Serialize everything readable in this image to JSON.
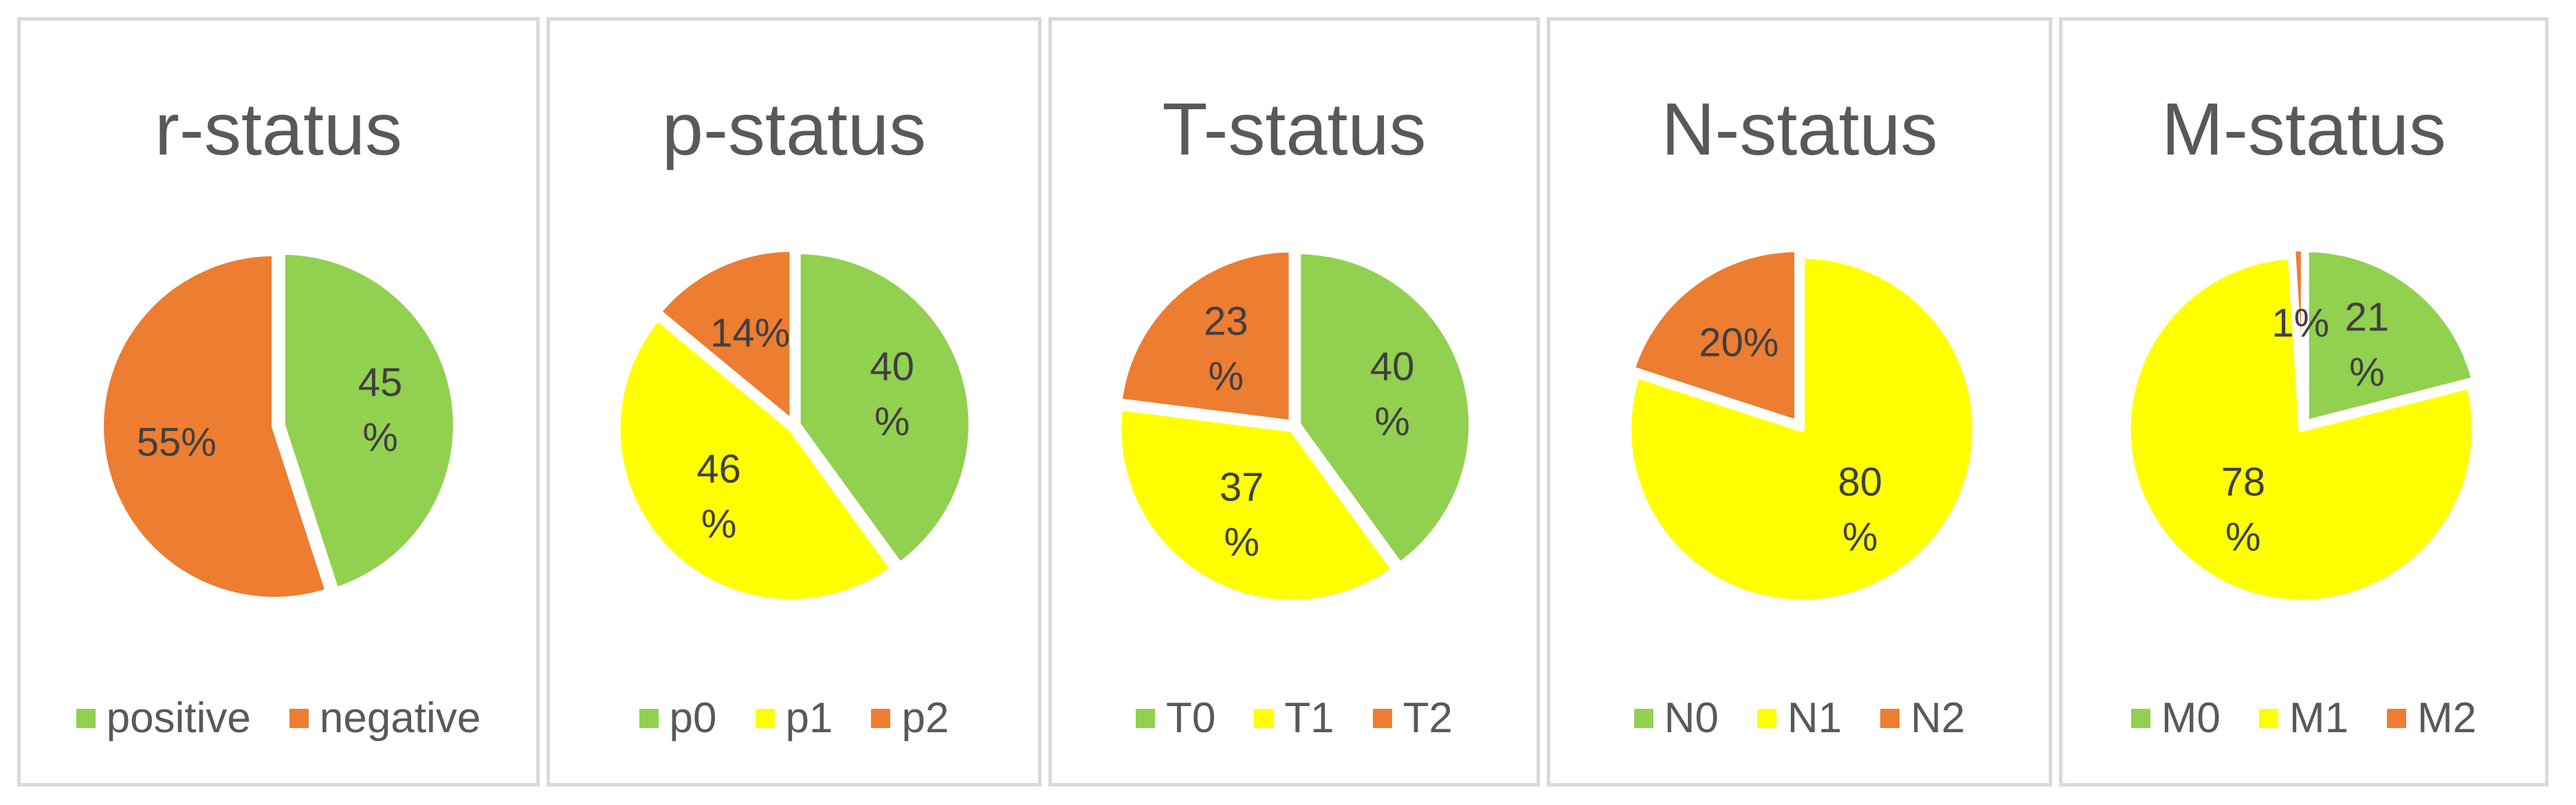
{
  "colors": {
    "green": "#92d050",
    "yellow": "#ffff00",
    "orange": "#ed7d31",
    "text": "#404040",
    "border": "#d9d9d9"
  },
  "chart_data": [
    {
      "type": "pie",
      "title": "r-status",
      "categories": [
        "positive",
        "negative"
      ],
      "values": [
        45,
        55
      ],
      "labels": [
        [
          "45",
          "%"
        ],
        [
          "55%"
        ]
      ],
      "colors": [
        "#92d050",
        "#ed7d31"
      ],
      "legend_position": "bottom"
    },
    {
      "type": "pie",
      "title": "p-status",
      "categories": [
        "p0",
        "p1",
        "p2"
      ],
      "values": [
        40,
        46,
        14
      ],
      "labels": [
        [
          "40",
          "%"
        ],
        [
          "46",
          "%"
        ],
        [
          "14%"
        ]
      ],
      "colors": [
        "#92d050",
        "#ffff00",
        "#ed7d31"
      ],
      "legend_position": "bottom"
    },
    {
      "type": "pie",
      "title": "T-status",
      "categories": [
        "T0",
        "T1",
        "T2"
      ],
      "values": [
        40,
        37,
        23
      ],
      "labels": [
        [
          "40",
          "%"
        ],
        [
          "37",
          "%"
        ],
        [
          "23",
          "%"
        ]
      ],
      "colors": [
        "#92d050",
        "#ffff00",
        "#ed7d31"
      ],
      "legend_position": "bottom"
    },
    {
      "type": "pie",
      "title": "N-status",
      "categories": [
        "N0",
        "N1",
        "N2"
      ],
      "values": [
        0,
        80,
        20
      ],
      "labels": [
        [],
        [
          "80",
          "%"
        ],
        [
          "20%"
        ]
      ],
      "colors": [
        "#92d050",
        "#ffff00",
        "#ed7d31"
      ],
      "legend_position": "bottom"
    },
    {
      "type": "pie",
      "title": "M-status",
      "categories": [
        "M0",
        "M1",
        "M2"
      ],
      "values": [
        21,
        78,
        1
      ],
      "labels": [
        [
          "21",
          "%"
        ],
        [
          "78",
          "%"
        ],
        [
          "1%"
        ]
      ],
      "colors": [
        "#92d050",
        "#ffff00",
        "#ed7d31"
      ],
      "legend_position": "bottom"
    }
  ]
}
